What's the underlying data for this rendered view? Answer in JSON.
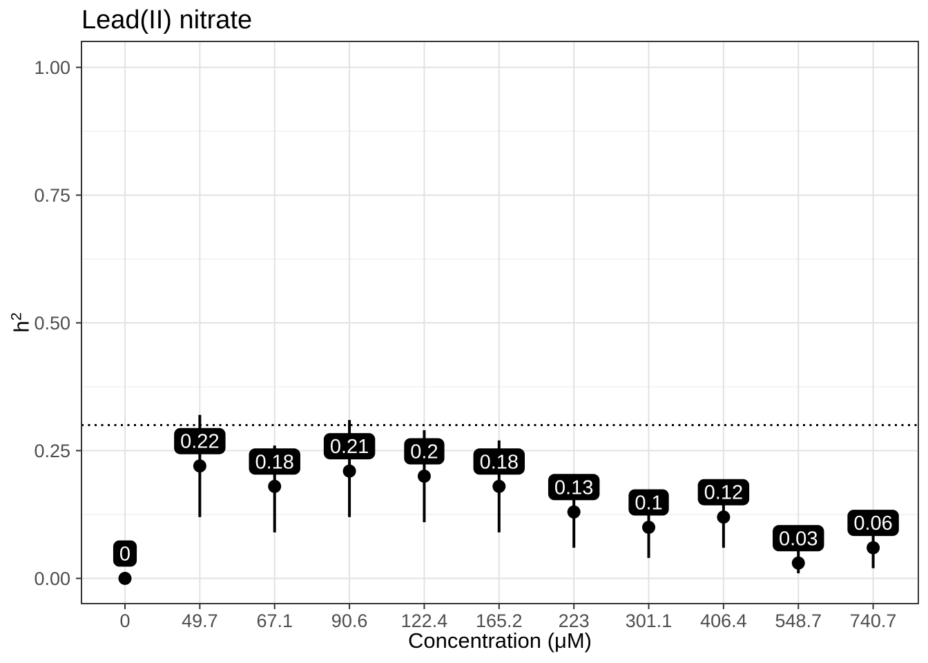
{
  "chart_data": {
    "type": "scatter",
    "subtype": "pointrange",
    "title": "Lead(II) nitrate",
    "xlabel": "Concentration (μM)",
    "ylabel": "h²",
    "ylabel_base": "h",
    "ylabel_exp": "2",
    "categories": [
      "0",
      "49.7",
      "67.1",
      "90.6",
      "122.4",
      "165.2",
      "223",
      "301.1",
      "406.4",
      "548.7",
      "740.7"
    ],
    "points": [
      {
        "category": "0",
        "value": 0.0,
        "label": "0",
        "lower": null,
        "upper": null
      },
      {
        "category": "49.7",
        "value": 0.22,
        "label": "0.22",
        "lower": 0.12,
        "upper": 0.32
      },
      {
        "category": "67.1",
        "value": 0.18,
        "label": "0.18",
        "lower": 0.09,
        "upper": 0.26
      },
      {
        "category": "90.6",
        "value": 0.21,
        "label": "0.21",
        "lower": 0.12,
        "upper": 0.31
      },
      {
        "category": "122.4",
        "value": 0.2,
        "label": "0.2",
        "lower": 0.11,
        "upper": 0.29
      },
      {
        "category": "165.2",
        "value": 0.18,
        "label": "0.18",
        "lower": 0.09,
        "upper": 0.27
      },
      {
        "category": "223",
        "value": 0.13,
        "label": "0.13",
        "lower": 0.06,
        "upper": 0.2
      },
      {
        "category": "301.1",
        "value": 0.1,
        "label": "0.1",
        "lower": 0.04,
        "upper": 0.16
      },
      {
        "category": "406.4",
        "value": 0.12,
        "label": "0.12",
        "lower": 0.06,
        "upper": 0.19
      },
      {
        "category": "548.7",
        "value": 0.03,
        "label": "0.03",
        "lower": 0.01,
        "upper": 0.06
      },
      {
        "category": "740.7",
        "value": 0.06,
        "label": "0.06",
        "lower": 0.02,
        "upper": 0.11
      }
    ],
    "yticks": [
      {
        "value": 0.0,
        "label": "0.00"
      },
      {
        "value": 0.25,
        "label": "0.25"
      },
      {
        "value": 0.5,
        "label": "0.50"
      },
      {
        "value": 0.75,
        "label": "0.75"
      },
      {
        "value": 1.0,
        "label": "1.00"
      }
    ],
    "yminor": [
      0.125,
      0.375,
      0.625,
      0.875
    ],
    "ylim": [
      -0.05,
      1.05
    ],
    "reference_line": {
      "value": 0.3,
      "style": "dotted"
    },
    "grid": "on",
    "legend": "none",
    "colors": {
      "point": "#000000",
      "range_line": "#000000",
      "label_bg": "#000000",
      "label_text": "#ffffff",
      "grid_major": "#e2e2e2",
      "grid_minor": "#ededed",
      "panel_border": "#333333",
      "tick_mark": "#333333",
      "tick_text": "#4d4d4d",
      "reference_line": "#000000",
      "panel_bg": "#ffffff"
    }
  }
}
